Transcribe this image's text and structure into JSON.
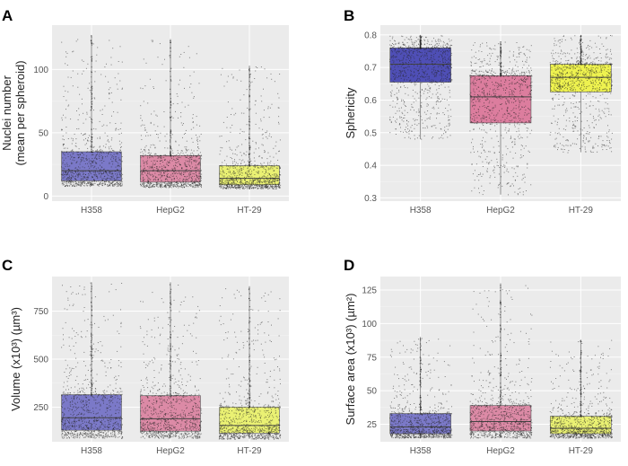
{
  "figure": {
    "dot_color": "#222222",
    "panel_bg": "#ebebeb"
  },
  "chart_data": [
    {
      "panel": "A",
      "type": "box",
      "ylabel_lines": [
        "Nuclei number",
        "(mean per spheroid)"
      ],
      "ylim": [
        -4,
        135
      ],
      "yticks": [
        0,
        50,
        100
      ],
      "yticks_labels": [
        "0",
        "50",
        "100"
      ],
      "categories": [
        "H358",
        "HepG2",
        "HT-29"
      ],
      "colors": [
        "#7b79c8",
        "#dc8aa6",
        "#eaf173"
      ],
      "boxes": [
        {
          "whisker_low": 8,
          "q1": 12,
          "median": 20,
          "q3": 35,
          "whisker_high": 127
        },
        {
          "whisker_low": 7,
          "q1": 11,
          "median": 20,
          "q3": 32,
          "whisker_high": 124
        },
        {
          "whisker_low": 6,
          "q1": 9,
          "median": 14,
          "q3": 24,
          "whisker_high": 103
        }
      ]
    },
    {
      "panel": "B",
      "type": "box",
      "ylabel_lines": [
        "Sphericity"
      ],
      "ylim": [
        0.29,
        0.83
      ],
      "yticks": [
        0.3,
        0.4,
        0.5,
        0.6,
        0.7,
        0.8
      ],
      "yticks_labels": [
        "0.3",
        "0.4",
        "0.5",
        "0.6",
        "0.7",
        "0.8"
      ],
      "categories": [
        "H358",
        "HepG2",
        "HT-29"
      ],
      "colors": [
        "#4f4fb6",
        "#dc7d9e",
        "#eef24f"
      ],
      "boxes": [
        {
          "whisker_low": 0.48,
          "q1": 0.655,
          "median": 0.71,
          "q3": 0.76,
          "whisker_high": 0.8
        },
        {
          "whisker_low": 0.31,
          "q1": 0.53,
          "median": 0.61,
          "q3": 0.675,
          "whisker_high": 0.78
        },
        {
          "whisker_low": 0.44,
          "q1": 0.625,
          "median": 0.67,
          "q3": 0.71,
          "whisker_high": 0.8
        }
      ]
    },
    {
      "panel": "C",
      "type": "box",
      "ylabel_lines": [
        "Volume (x10³) (µm³)"
      ],
      "ylim": [
        70,
        930
      ],
      "yticks": [
        250,
        500,
        750
      ],
      "yticks_labels": [
        "250",
        "500",
        "750"
      ],
      "categories": [
        "H358",
        "HepG2",
        "HT-29"
      ],
      "colors": [
        "#7b79c8",
        "#dc8aa6",
        "#eaf173"
      ],
      "boxes": [
        {
          "whisker_low": 90,
          "q1": 130,
          "median": 195,
          "q3": 315,
          "whisker_high": 900
        },
        {
          "whisker_low": 90,
          "q1": 125,
          "median": 190,
          "q3": 310,
          "whisker_high": 900
        },
        {
          "whisker_low": 85,
          "q1": 115,
          "median": 155,
          "q3": 250,
          "whisker_high": 880
        }
      ]
    },
    {
      "panel": "D",
      "type": "box",
      "ylabel_lines": [
        "Surface area (x10³) (µm²)"
      ],
      "ylim": [
        12,
        135
      ],
      "yticks": [
        25,
        50,
        75,
        100,
        125
      ],
      "yticks_labels": [
        "25",
        "50",
        "75",
        "100",
        "125"
      ],
      "categories": [
        "H358",
        "HepG2",
        "HT-29"
      ],
      "colors": [
        "#7b79c8",
        "#dc8aa6",
        "#eaf173"
      ],
      "boxes": [
        {
          "whisker_low": 15,
          "q1": 18,
          "median": 23,
          "q3": 33,
          "whisker_high": 90
        },
        {
          "whisker_low": 15,
          "q1": 20,
          "median": 27,
          "q3": 39,
          "whisker_high": 130
        },
        {
          "whisker_low": 15,
          "q1": 18,
          "median": 22,
          "q3": 31,
          "whisker_high": 88
        }
      ]
    }
  ]
}
